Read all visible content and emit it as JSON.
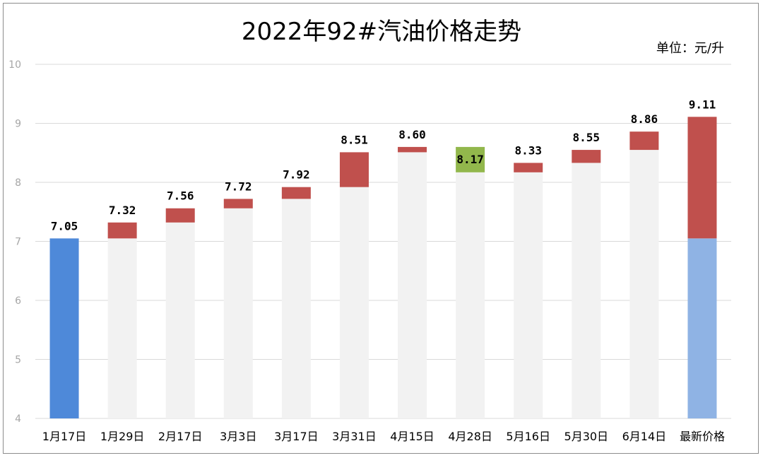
{
  "chart_data": {
    "type": "bar",
    "title": "2022年92#汽油价格走势",
    "unit_label": "单位：元/升",
    "categories": [
      "1月17日",
      "1月29日",
      "2月17日",
      "3月3日",
      "3月17日",
      "3月31日",
      "4月15日",
      "4月28日",
      "5月16日",
      "5月30日",
      "6月14日",
      "最新价格"
    ],
    "values": [
      7.05,
      7.32,
      7.56,
      7.72,
      7.92,
      8.51,
      8.6,
      8.17,
      8.33,
      8.55,
      8.86,
      9.11
    ],
    "value_labels": [
      "7.05",
      "7.32",
      "7.56",
      "7.72",
      "7.92",
      "8.51",
      "8.60",
      "8.17",
      "8.33",
      "8.55",
      "8.86",
      "9.11"
    ],
    "ylim": [
      4,
      10
    ],
    "yticks": [
      4,
      5,
      6,
      7,
      8,
      9,
      10
    ],
    "grid": true,
    "colors": {
      "start": "#4e89d9",
      "increase": "#c0504d",
      "decrease": "#92b74c",
      "base": "#f2f2f2",
      "final_base": "#8fb3e4"
    }
  }
}
